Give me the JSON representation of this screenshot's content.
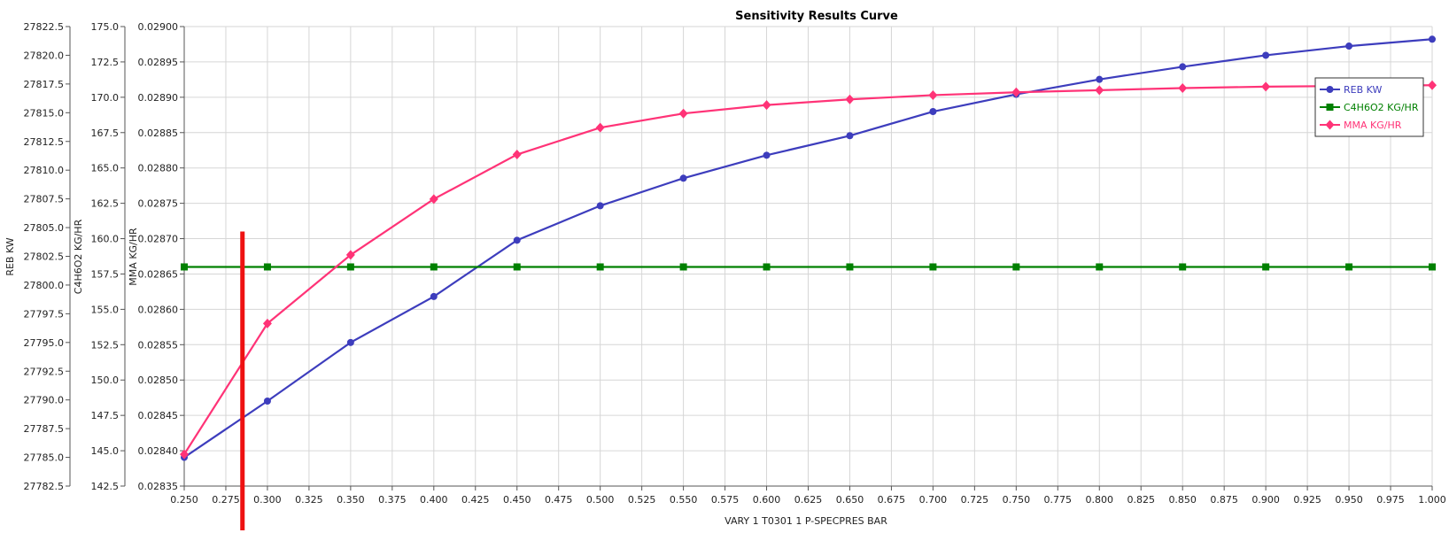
{
  "chart_data": {
    "type": "line",
    "title": "Sensitivity Results Curve",
    "xlabel": "VARY   1 T0301 1 P-SPECPRES BAR",
    "xlim": [
      0.25,
      1.0
    ],
    "x_ticks": [
      "0.250",
      "0.275",
      "0.300",
      "0.325",
      "0.350",
      "0.375",
      "0.400",
      "0.425",
      "0.450",
      "0.475",
      "0.500",
      "0.525",
      "0.550",
      "0.575",
      "0.600",
      "0.625",
      "0.650",
      "0.675",
      "0.700",
      "0.725",
      "0.750",
      "0.775",
      "0.800",
      "0.825",
      "0.850",
      "0.875",
      "0.900",
      "0.925",
      "0.950",
      "0.975",
      "1.000"
    ],
    "grid": true,
    "legend_position": "top-right",
    "x": [
      0.25,
      0.3,
      0.35,
      0.4,
      0.45,
      0.5,
      0.55,
      0.6,
      0.65,
      0.7,
      0.75,
      0.8,
      0.85,
      0.9,
      0.95,
      1.0
    ],
    "axes": [
      {
        "label": "REB KW",
        "ylim": [
          27782.5,
          27822.5
        ],
        "ticks": [
          "27822.5",
          "27820.0",
          "27817.5",
          "27815.0",
          "27812.5",
          "27810.0",
          "27807.5",
          "27805.0",
          "27802.5",
          "27800.0",
          "27797.5",
          "27795.0",
          "27792.5",
          "27790.0",
          "27787.5",
          "27785.0",
          "27782.5"
        ]
      },
      {
        "label": "C4H6O2 KG/HR",
        "ylim": [
          142.5,
          175.0
        ],
        "ticks": [
          "175.0",
          "172.5",
          "170.0",
          "167.5",
          "165.0",
          "162.5",
          "160.0",
          "157.5",
          "155.0",
          "152.5",
          "150.0",
          "147.5",
          "145.0",
          "142.5"
        ]
      },
      {
        "label": "MMA KG/HR",
        "ylim": [
          0.02835,
          0.029
        ],
        "ticks": [
          "0.02900",
          "0.02895",
          "0.02890",
          "0.02885",
          "0.02880",
          "0.02875",
          "0.02870",
          "0.02865",
          "0.02860",
          "0.02855",
          "0.02850",
          "0.02845",
          "0.02840",
          "0.02835"
        ]
      }
    ],
    "series": [
      {
        "name": "REB KW",
        "axis": 0,
        "color": "#3d3dbd",
        "marker": "circle",
        "values": [
          27785.0,
          27789.9,
          27795.0,
          27799.0,
          27803.9,
          27806.9,
          27809.3,
          27811.3,
          27813.0,
          27815.1,
          27816.6,
          27817.9,
          27819.0,
          27820.0,
          27820.8,
          27821.4
        ]
      },
      {
        "name": "C4H6O2 KG/HR",
        "axis": 1,
        "color": "#008000",
        "marker": "square",
        "values": [
          158.0,
          158.0,
          158.0,
          158.0,
          158.0,
          158.0,
          158.0,
          158.0,
          158.0,
          158.0,
          158.0,
          158.0,
          158.0,
          158.0,
          158.0,
          158.0
        ]
      },
      {
        "name": "MMA KG/HR",
        "axis": 2,
        "color": "#ff3377",
        "marker": "diamond",
        "values": [
          0.028395,
          0.02858,
          0.028677,
          0.028756,
          0.028819,
          0.028857,
          0.028877,
          0.028889,
          0.028897,
          0.028903,
          0.028907,
          0.02891,
          0.028913,
          0.028915,
          0.028916,
          0.028917
        ]
      }
    ],
    "annotation_line": {
      "color": "#ee1111",
      "x": 0.285,
      "y_top": 160.5,
      "axis": 1
    }
  }
}
